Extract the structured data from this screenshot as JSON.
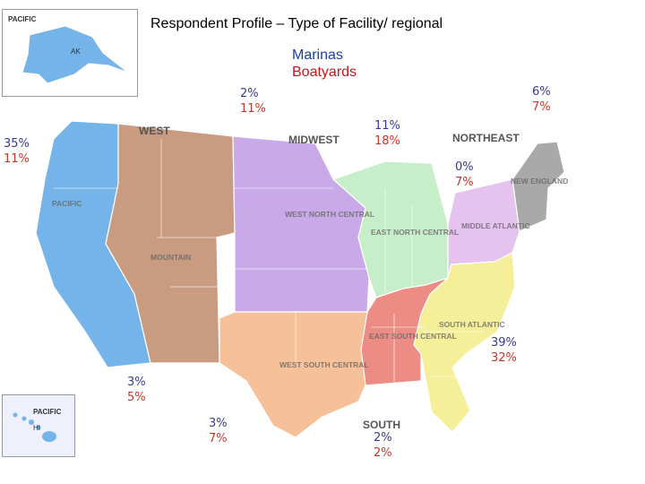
{
  "title": "Respondent Profile – Type of Facility/ regional",
  "legend": {
    "marinas": "Marinas",
    "boatyards": "Boatyards"
  },
  "colors": {
    "marinas": "#3a3a8c",
    "boatyards": "#c0392b"
  },
  "regions": {
    "west": "WEST",
    "midwest": "MIDWEST",
    "northeast": "NORTHEAST",
    "south": "SOUTH",
    "pacific": "PACIFIC",
    "mountain": "MOUNTAIN",
    "west_north_central": "WEST NORTH CENTRAL",
    "east_north_central": "EAST NORTH CENTRAL",
    "new_england": "NEW ENGLAND",
    "middle_atlantic": "MIDDLE ATLANTIC",
    "south_atlantic": "SOUTH ATLANTIC",
    "east_south_central": "EAST SOUTH CENTRAL",
    "west_south_central": "WEST SOUTH CENTRAL"
  },
  "insets": {
    "alaska_label": "PACIFIC",
    "alaska_state": "AK",
    "hawaii_label": "PACIFIC",
    "hawaii_state": "HI"
  },
  "stats": {
    "pacific": {
      "marinas": "35%",
      "boatyards": "11%"
    },
    "mountain": {
      "marinas": "2%",
      "boatyards": "11%"
    },
    "west_north_central": {
      "marinas": "11%",
      "boatyards": "18%"
    },
    "east_north_central": {
      "marinas": "0%",
      "boatyards": "7%"
    },
    "new_england": {
      "marinas": "6%",
      "boatyards": "7%"
    },
    "south_atlantic": {
      "marinas": "39%",
      "boatyards": "32%"
    },
    "hawaii": {
      "marinas": "3%",
      "boatyards": "5%"
    },
    "west_south_central": {
      "marinas": "3%",
      "boatyards": "7%"
    },
    "east_south_central": {
      "marinas": "2%",
      "boatyards": "2%"
    }
  }
}
